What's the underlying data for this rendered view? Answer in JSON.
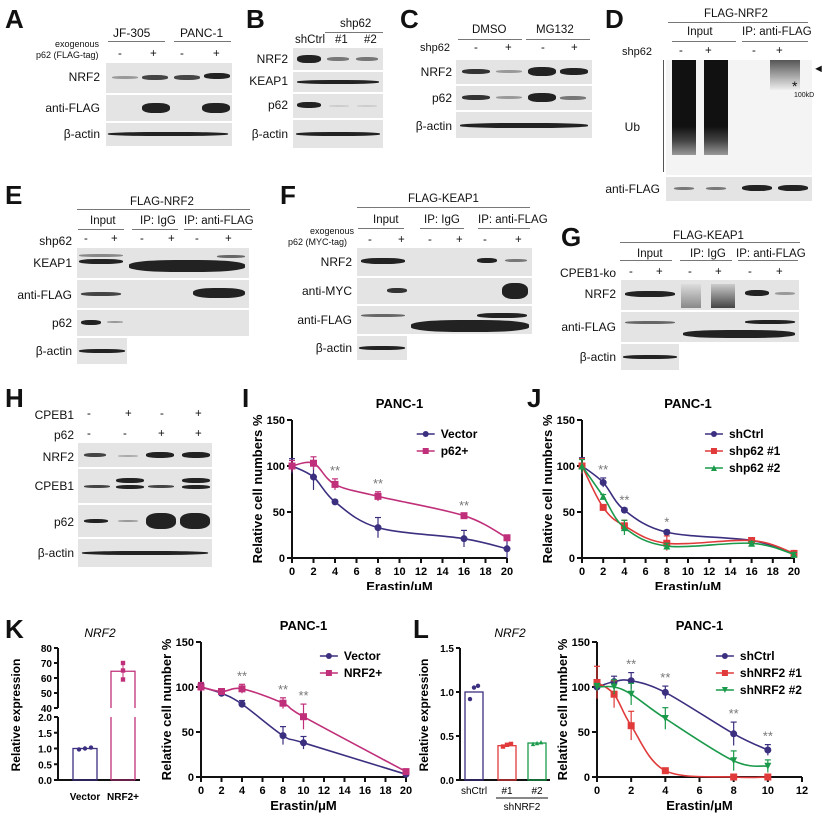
{
  "panels": {
    "A": {
      "label": "A",
      "groups": [
        "JF-305",
        "PANC-1"
      ],
      "condition_label_1": "exogenous",
      "condition_label_2": "p62 (FLAG-tag)",
      "signs": [
        "-",
        "+",
        "-",
        "+"
      ],
      "rows": [
        "NRF2",
        "anti-FLAG",
        "β-actin"
      ]
    },
    "B": {
      "label": "B",
      "group": "shp62",
      "lanes": [
        "shCtrl",
        "#1",
        "#2"
      ],
      "rows": [
        "NRF2",
        "KEAP1",
        "p62",
        "β-actin"
      ]
    },
    "C": {
      "label": "C",
      "groups": [
        "DMSO",
        "MG132"
      ],
      "condition_label": "shp62",
      "signs": [
        "-",
        "+",
        "-",
        "+"
      ],
      "rows": [
        "NRF2",
        "p62",
        "β-actin"
      ]
    },
    "D": {
      "label": "D",
      "top": "FLAG-NRF2",
      "groups": [
        "Input",
        "IP: anti-FLAG"
      ],
      "condition_label": "shp62",
      "signs": [
        "-",
        "+",
        "-",
        "+"
      ],
      "rows": [
        "Ub",
        "anti-FLAG"
      ],
      "marker_arrow": "◄",
      "marker_star": "*",
      "marker_kd": "100kD"
    },
    "E": {
      "label": "E",
      "top": "FLAG-NRF2",
      "groups": [
        "Input",
        "IP: IgG",
        "IP: anti-FLAG"
      ],
      "condition_label": "shp62",
      "signs": [
        "-",
        "+",
        "-",
        "+",
        "-",
        "+"
      ],
      "rows": [
        "KEAP1",
        "anti-FLAG",
        "p62",
        "β-actin"
      ]
    },
    "F": {
      "label": "F",
      "top": "FLAG-KEAP1",
      "groups": [
        "Input",
        "IP: IgG",
        "IP: anti-FLAG"
      ],
      "condition_label_1": "exogenous",
      "condition_label_2": "p62 (MYC-tag)",
      "signs": [
        "-",
        "+",
        "-",
        "+",
        "-",
        "+"
      ],
      "rows": [
        "NRF2",
        "anti-MYC",
        "anti-FLAG",
        "β-actin"
      ]
    },
    "G": {
      "label": "G",
      "top": "FLAG-KEAP1",
      "groups": [
        "Input",
        "IP: IgG",
        "IP: anti-FLAG"
      ],
      "condition_label": "CPEB1-ko",
      "signs": [
        "-",
        "+",
        "-",
        "+",
        "-",
        "+"
      ],
      "rows": [
        "NRF2",
        "anti-FLAG",
        "β-actin"
      ]
    },
    "H": {
      "label": "H",
      "cond1_label": "CPEB1",
      "cond1_signs": [
        "-",
        "+",
        "-",
        "+"
      ],
      "cond2_label": "p62",
      "cond2_signs": [
        "-",
        "-",
        "+",
        "+"
      ],
      "rows": [
        "NRF2",
        "CPEB1",
        "p62",
        "β-actin"
      ]
    },
    "I": {
      "label": "I"
    },
    "J": {
      "label": "J"
    },
    "K": {
      "label": "K"
    },
    "L": {
      "label": "L"
    }
  },
  "chart_data": [
    {
      "panel": "I",
      "type": "line",
      "title": "PANC-1",
      "xlabel": "Erastin/μM",
      "ylabel": "Relative cell numbers %",
      "xlim": [
        0,
        20
      ],
      "ylim": [
        0,
        150
      ],
      "xticks": [
        0,
        2,
        4,
        6,
        8,
        10,
        12,
        14,
        16,
        18,
        20
      ],
      "yticks": [
        0,
        50,
        100,
        150
      ],
      "legend_position": "upper right",
      "series": [
        {
          "name": "Vector",
          "color": "#3b2f80",
          "marker": "circle",
          "x": [
            0,
            2,
            4,
            8,
            16,
            20
          ],
          "y": [
            100,
            88,
            61,
            33,
            21,
            10
          ],
          "err": [
            8,
            14,
            2,
            11,
            9,
            10
          ]
        },
        {
          "name": "p62+",
          "color": "#c0307a",
          "marker": "square",
          "x": [
            0,
            2,
            4,
            8,
            16,
            20
          ],
          "y": [
            100,
            103,
            80,
            67,
            46,
            22
          ],
          "err": [
            6,
            7,
            6,
            5,
            2,
            2
          ]
        }
      ],
      "annotations": [
        {
          "x": 4,
          "text": "**"
        },
        {
          "x": 8,
          "text": "**"
        },
        {
          "x": 16,
          "text": "**"
        }
      ]
    },
    {
      "panel": "J",
      "type": "line",
      "title": "PANC-1",
      "xlabel": "Erastin/μM",
      "ylabel": "Relative cell numbers %",
      "xlim": [
        0,
        20
      ],
      "ylim": [
        0,
        150
      ],
      "xticks": [
        0,
        2,
        4,
        6,
        8,
        10,
        12,
        14,
        16,
        18,
        20
      ],
      "yticks": [
        0,
        50,
        100,
        150
      ],
      "legend_position": "upper right",
      "series": [
        {
          "name": "shCtrl",
          "color": "#3b2f80",
          "marker": "circle",
          "x": [
            0,
            2,
            4,
            8,
            16,
            20
          ],
          "y": [
            100,
            82,
            52,
            28,
            19,
            5
          ],
          "err": [
            9,
            5,
            2,
            2,
            2,
            2
          ]
        },
        {
          "name": "shp62 #1",
          "color": "#e03a3a",
          "marker": "square",
          "x": [
            0,
            2,
            4,
            8,
            16,
            20
          ],
          "y": [
            100,
            55,
            35,
            16,
            19,
            5
          ],
          "err": [
            8,
            2,
            6,
            8,
            2,
            2
          ]
        },
        {
          "name": "shp62 #2",
          "color": "#1a9a4a",
          "marker": "triangle",
          "x": [
            0,
            2,
            4,
            8,
            16,
            20
          ],
          "y": [
            100,
            67,
            33,
            13,
            16,
            4
          ],
          "err": [
            7,
            2,
            8,
            3,
            2,
            2
          ]
        }
      ],
      "annotations": [
        {
          "x": 2,
          "text": "**"
        },
        {
          "x": 4,
          "text": "**"
        },
        {
          "x": 8,
          "text": "*"
        }
      ]
    },
    {
      "panel": "K-left",
      "type": "bar",
      "title": "NRF2",
      "ylabel": "Relative expression",
      "categories": [
        "Vector",
        "NRF2+"
      ],
      "values": [
        1.0,
        64.5
      ],
      "points": [
        [
          0.97,
          1.0,
          1.03
        ],
        [
          59,
          65,
          70
        ]
      ],
      "colors": [
        "#3b2f80",
        "#c0307a"
      ],
      "axis_break": true,
      "yticks_lower": [
        0.0,
        0.5,
        1.0,
        1.5,
        2.0
      ],
      "yticks_upper": [
        40,
        50,
        60,
        70,
        80
      ]
    },
    {
      "panel": "K-right",
      "type": "line",
      "title": "PANC-1",
      "xlabel": "Erastin/μM",
      "ylabel": "Relative cell number %",
      "xlim": [
        0,
        20
      ],
      "ylim": [
        0,
        150
      ],
      "xticks": [
        0,
        2,
        4,
        6,
        8,
        10,
        12,
        14,
        16,
        18,
        20
      ],
      "yticks": [
        0,
        50,
        100,
        150
      ],
      "legend_position": "upper right",
      "series": [
        {
          "name": "Vector",
          "color": "#3b2f80",
          "marker": "circle",
          "x": [
            0,
            2,
            4,
            8,
            10,
            20
          ],
          "y": [
            100,
            93,
            81,
            46,
            38,
            3
          ],
          "err": [
            4,
            2,
            4,
            10,
            7,
            2
          ]
        },
        {
          "name": "NRF2+",
          "color": "#c0307a",
          "marker": "square",
          "x": [
            0,
            2,
            4,
            8,
            10,
            20
          ],
          "y": [
            100,
            95,
            98,
            82,
            67,
            6
          ],
          "err": [
            5,
            2,
            5,
            6,
            14,
            2
          ]
        }
      ],
      "annotations": [
        {
          "x": 4,
          "text": "**"
        },
        {
          "x": 8,
          "text": "**"
        },
        {
          "x": 10,
          "text": "**"
        }
      ]
    },
    {
      "panel": "L-left",
      "type": "bar",
      "title": "NRF2",
      "ylabel": "Relative expression",
      "categories": [
        "shCtrl",
        "#1",
        "#2"
      ],
      "group_label": "shNRF2",
      "values": [
        1.0,
        0.39,
        0.42
      ],
      "points": [
        [
          0.92,
          1.05,
          1.07
        ],
        [
          0.38,
          0.4,
          0.41
        ],
        [
          0.41,
          0.42,
          0.43
        ]
      ],
      "colors": [
        "#3b2f80",
        "#e03a3a",
        "#1a9a4a"
      ],
      "ylim": [
        0,
        1.5
      ],
      "yticks": [
        0.0,
        0.5,
        1.0,
        1.5
      ]
    },
    {
      "panel": "L-right",
      "type": "line",
      "title": "PANC-1",
      "xlabel": "Erastin/μM",
      "ylabel": "Relative cell number %",
      "xlim": [
        0,
        12
      ],
      "ylim": [
        0,
        150
      ],
      "xticks": [
        0,
        2,
        4,
        6,
        8,
        10,
        12
      ],
      "yticks": [
        0,
        50,
        100,
        150
      ],
      "legend_position": "upper right",
      "series": [
        {
          "name": "shCtrl",
          "color": "#3b2f80",
          "marker": "circle",
          "x": [
            0,
            1,
            2,
            4,
            8,
            10
          ],
          "y": [
            100,
            106,
            107,
            94,
            48,
            30
          ],
          "err": [
            5,
            6,
            9,
            7,
            13,
            6
          ]
        },
        {
          "name": "shNRF2 #1",
          "color": "#e03a3a",
          "marker": "square",
          "x": [
            0,
            1,
            2,
            4,
            8,
            10
          ],
          "y": [
            105,
            92,
            57,
            7,
            0,
            0
          ],
          "err": [
            18,
            15,
            16,
            1,
            1,
            1
          ]
        },
        {
          "name": "shNRF2 #2",
          "color": "#1a9a4a",
          "marker": "triangle-down",
          "x": [
            0,
            1,
            2,
            4,
            8,
            10
          ],
          "y": [
            100,
            100,
            92,
            65,
            18,
            12
          ],
          "err": [
            4,
            8,
            12,
            12,
            11,
            7
          ]
        }
      ],
      "annotations": [
        {
          "x": 2,
          "text": "**"
        },
        {
          "x": 4,
          "text": "**"
        },
        {
          "x": 8,
          "text": "**"
        },
        {
          "x": 10,
          "text": "**"
        }
      ]
    }
  ]
}
